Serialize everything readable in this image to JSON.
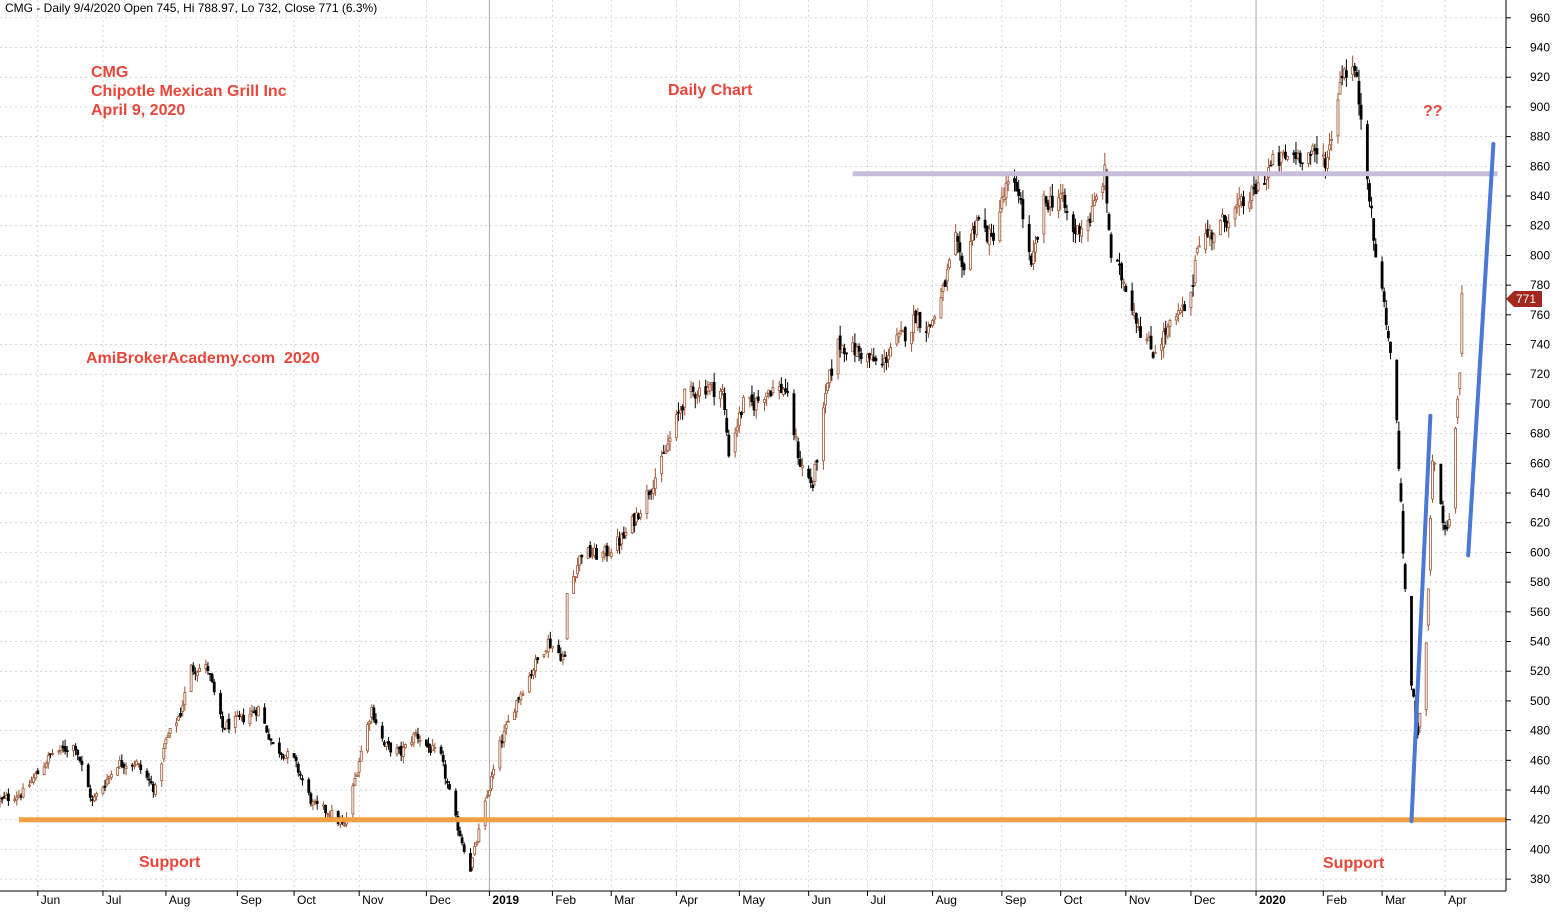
{
  "header": {
    "title_line": "CMG - Daily 9/4/2020 Open 745, Hi 788.97, Lo 732, Close 771 (6.3%)"
  },
  "annotations": {
    "symbol": "CMG",
    "company": "Chipotle Mexican Grill Inc",
    "date": "April 9, 2020",
    "chart_kind": "Daily Chart",
    "watermark": "AmiBrokerAcademy.com  2020",
    "support_left": "Support",
    "support_right": "Support",
    "question": "??"
  },
  "last_price_label": "771",
  "colors": {
    "up_candle": "#a0522d",
    "down_candle": "#000000",
    "grid": "#c8c8c8",
    "annotation_text": "#e8463a",
    "support_line": "#f0a040",
    "resistance_line": "#c8bedc",
    "trend_line": "#4a78d4",
    "price_marker": "#a0281e"
  },
  "chart_data": {
    "type": "candlestick",
    "title": "CMG - Daily 9/4/2020 Open 745, Hi 788.97, Lo 732, Close 771 (6.3%)",
    "ylim": [
      372,
      972
    ],
    "y_ticks": [
      380,
      400,
      420,
      440,
      460,
      480,
      500,
      520,
      540,
      560,
      580,
      600,
      620,
      640,
      660,
      680,
      700,
      720,
      740,
      760,
      780,
      800,
      820,
      840,
      860,
      880,
      900,
      920,
      940,
      960
    ],
    "x_ticks": [
      {
        "label": "Jun",
        "d": "2018-06-01",
        "bold": false
      },
      {
        "label": "Jul",
        "d": "2018-07-02",
        "bold": false
      },
      {
        "label": "Aug",
        "d": "2018-08-01",
        "bold": false
      },
      {
        "label": "Sep",
        "d": "2018-09-04",
        "bold": false
      },
      {
        "label": "Oct",
        "d": "2018-10-01",
        "bold": false
      },
      {
        "label": "Nov",
        "d": "2018-11-01",
        "bold": false
      },
      {
        "label": "Dec",
        "d": "2018-12-03",
        "bold": false
      },
      {
        "label": "2019",
        "d": "2019-01-02",
        "bold": true
      },
      {
        "label": "Feb",
        "d": "2019-02-01",
        "bold": false
      },
      {
        "label": "Mar",
        "d": "2019-03-01",
        "bold": false
      },
      {
        "label": "Apr",
        "d": "2019-04-01",
        "bold": false
      },
      {
        "label": "May",
        "d": "2019-05-01",
        "bold": false
      },
      {
        "label": "Jun",
        "d": "2019-06-03",
        "bold": false
      },
      {
        "label": "Jul",
        "d": "2019-07-01",
        "bold": false
      },
      {
        "label": "Aug",
        "d": "2019-08-01",
        "bold": false
      },
      {
        "label": "Sep",
        "d": "2019-09-03",
        "bold": false
      },
      {
        "label": "Oct",
        "d": "2019-10-01",
        "bold": false
      },
      {
        "label": "Nov",
        "d": "2019-11-01",
        "bold": false
      },
      {
        "label": "Dec",
        "d": "2019-12-02",
        "bold": false
      },
      {
        "label": "2020",
        "d": "2020-01-02",
        "bold": true
      },
      {
        "label": "Feb",
        "d": "2020-02-03",
        "bold": false
      },
      {
        "label": "Mar",
        "d": "2020-03-02",
        "bold": false
      },
      {
        "label": "Apr",
        "d": "2020-04-01",
        "bold": false
      }
    ],
    "price_path": [
      [
        "2018-05-14",
        433
      ],
      [
        "2018-05-25",
        438
      ],
      [
        "2018-06-08",
        465
      ],
      [
        "2018-06-19",
        470
      ],
      [
        "2018-06-27",
        432
      ],
      [
        "2018-07-09",
        458
      ],
      [
        "2018-07-18",
        458
      ],
      [
        "2018-07-27",
        440
      ],
      [
        "2018-08-01",
        473
      ],
      [
        "2018-08-08",
        492
      ],
      [
        "2018-08-13",
        522
      ],
      [
        "2018-08-21",
        522
      ],
      [
        "2018-08-28",
        482
      ],
      [
        "2018-09-06",
        488
      ],
      [
        "2018-09-14",
        495
      ],
      [
        "2018-09-21",
        470
      ],
      [
        "2018-10-01",
        460
      ],
      [
        "2018-10-10",
        430
      ],
      [
        "2018-10-18",
        425
      ],
      [
        "2018-10-25",
        415
      ],
      [
        "2018-11-01",
        460
      ],
      [
        "2018-11-07",
        495
      ],
      [
        "2018-11-13",
        470
      ],
      [
        "2018-11-21",
        465
      ],
      [
        "2018-11-28",
        478
      ],
      [
        "2018-12-03",
        470
      ],
      [
        "2018-12-10",
        462
      ],
      [
        "2018-12-17",
        420
      ],
      [
        "2018-12-24",
        387
      ],
      [
        "2018-12-31",
        430
      ],
      [
        "2019-01-07",
        470
      ],
      [
        "2019-01-15",
        500
      ],
      [
        "2019-01-24",
        525
      ],
      [
        "2019-01-30",
        540
      ],
      [
        "2019-02-07",
        528
      ],
      [
        "2019-02-08",
        572
      ],
      [
        "2019-02-15",
        600
      ],
      [
        "2019-02-25",
        598
      ],
      [
        "2019-03-07",
        610
      ],
      [
        "2019-03-15",
        630
      ],
      [
        "2019-03-25",
        660
      ],
      [
        "2019-04-05",
        705
      ],
      [
        "2019-04-16",
        712
      ],
      [
        "2019-04-23",
        708
      ],
      [
        "2019-04-26",
        668
      ],
      [
        "2019-05-03",
        700
      ],
      [
        "2019-05-08",
        700
      ],
      [
        "2019-05-15",
        710
      ],
      [
        "2019-05-23",
        710
      ],
      [
        "2019-05-30",
        660
      ],
      [
        "2019-06-05",
        645
      ],
      [
        "2019-06-12",
        712
      ],
      [
        "2019-06-17",
        740
      ],
      [
        "2019-06-27",
        735
      ],
      [
        "2019-07-08",
        725
      ],
      [
        "2019-07-12",
        738
      ],
      [
        "2019-07-22",
        752
      ],
      [
        "2019-07-24",
        760
      ],
      [
        "2019-07-30",
        750
      ],
      [
        "2019-08-05",
        770
      ],
      [
        "2019-08-12",
        810
      ],
      [
        "2019-08-15",
        790
      ],
      [
        "2019-08-22",
        825
      ],
      [
        "2019-08-29",
        810
      ],
      [
        "2019-09-05",
        845
      ],
      [
        "2019-09-11",
        845
      ],
      [
        "2019-09-17",
        790
      ],
      [
        "2019-09-23",
        835
      ],
      [
        "2019-10-01",
        840
      ],
      [
        "2019-10-07",
        815
      ],
      [
        "2019-10-15",
        825
      ],
      [
        "2019-10-22",
        855
      ],
      [
        "2019-10-25",
        800
      ],
      [
        "2019-11-01",
        780
      ],
      [
        "2019-11-08",
        750
      ],
      [
        "2019-11-14",
        735
      ],
      [
        "2019-11-21",
        750
      ],
      [
        "2019-12-02",
        770
      ],
      [
        "2019-12-05",
        810
      ],
      [
        "2019-12-12",
        815
      ],
      [
        "2019-12-19",
        825
      ],
      [
        "2019-12-31",
        840
      ],
      [
        "2020-01-10",
        862
      ],
      [
        "2020-01-20",
        868
      ],
      [
        "2020-01-29",
        868
      ],
      [
        "2020-02-05",
        865
      ],
      [
        "2020-02-12",
        925
      ],
      [
        "2020-02-18",
        925
      ],
      [
        "2020-02-21",
        895
      ],
      [
        "2020-02-24",
        858
      ],
      [
        "2020-02-27",
        810
      ],
      [
        "2020-03-04",
        758
      ],
      [
        "2020-03-09",
        690
      ],
      [
        "2020-03-12",
        600
      ],
      [
        "2020-03-16",
        510
      ],
      [
        "2020-03-19",
        480
      ],
      [
        "2020-03-23",
        535
      ],
      [
        "2020-03-26",
        665
      ],
      [
        "2020-04-01",
        612
      ],
      [
        "2020-04-03",
        620
      ],
      [
        "2020-04-06",
        680
      ],
      [
        "2020-04-08",
        725
      ],
      [
        "2020-04-09",
        771
      ]
    ],
    "last_close": 771,
    "overlays": [
      {
        "name": "support",
        "kind": "horizontal",
        "value": 420,
        "from": "2018-05-23",
        "to": "2020-04-30"
      },
      {
        "name": "resistance",
        "kind": "horizontal",
        "value": 855,
        "from": "2019-06-24",
        "to": "2020-04-26"
      },
      {
        "name": "trend-1",
        "kind": "segment",
        "from": [
          "2020-03-16",
          419
        ],
        "to": [
          "2020-03-25",
          692
        ]
      },
      {
        "name": "trend-2",
        "kind": "segment",
        "from": [
          "2020-04-12",
          598
        ],
        "to": [
          "2020-04-24",
          875
        ]
      }
    ]
  }
}
